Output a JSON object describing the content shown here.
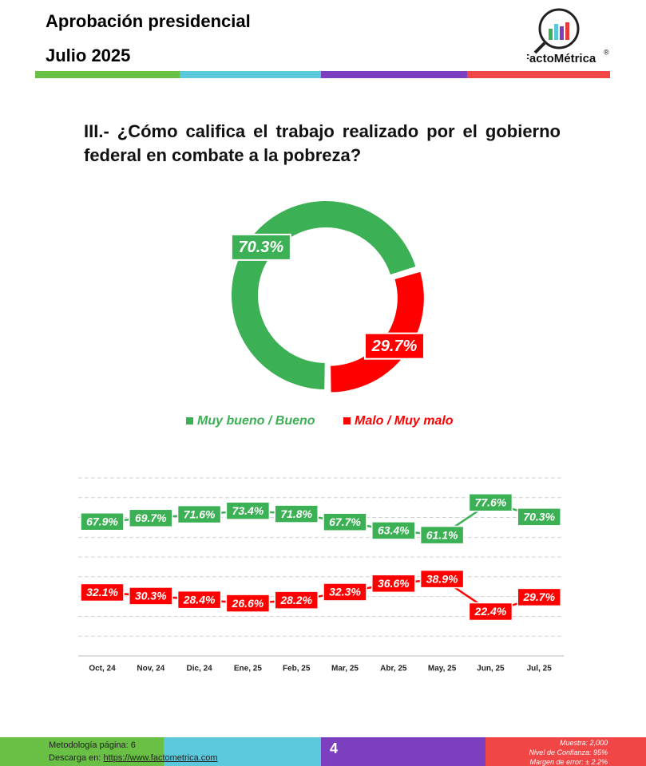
{
  "header": {
    "title": "Aprobación presidencial",
    "subtitle": "Julio 2025",
    "brand": "FactoMétrica",
    "brand_mark": "®"
  },
  "chart_data": [
    {
      "type": "pie",
      "title": "III.- ¿Cómo califica el trabajo realizado por el gobierno federal en combate a la pobreza?",
      "categories": [
        "Muy bueno / Bueno",
        "Malo / Muy malo"
      ],
      "values": [
        70.3,
        29.7
      ],
      "value_labels": [
        "70.3%",
        "29.7%"
      ],
      "colors": [
        "#3cb054",
        "#ff0000"
      ],
      "donut": true
    },
    {
      "type": "line",
      "categories": [
        "Oct, 24",
        "Nov, 24",
        "Dic, 24",
        "Ene, 25",
        "Feb, 25",
        "Mar, 25",
        "Abr, 25",
        "May, 25",
        "Jun, 25",
        "Jul, 25"
      ],
      "series": [
        {
          "color": "#3cb054",
          "values": [
            67.9,
            69.7,
            71.6,
            73.4,
            71.8,
            67.7,
            63.4,
            61.1,
            77.6,
            70.3
          ],
          "value_labels": [
            "67.9%",
            "69.7%",
            "71.6%",
            "73.4%",
            "71.8%",
            "67.7%",
            "63.4%",
            "61.1%",
            "77.6%",
            "70.3%"
          ]
        },
        {
          "color": "#ff0000",
          "values": [
            32.1,
            30.3,
            28.4,
            26.6,
            28.2,
            32.3,
            36.6,
            38.9,
            22.4,
            29.7
          ],
          "value_labels": [
            "32.1%",
            "30.3%",
            "28.4%",
            "26.6%",
            "28.2%",
            "32.3%",
            "36.6%",
            "38.9%",
            "22.4%",
            "29.7%"
          ]
        }
      ],
      "ylim": [
        0,
        90
      ],
      "yticks": [
        0,
        10,
        20,
        30,
        40,
        50,
        60,
        70,
        80,
        90
      ],
      "grid": true
    }
  ],
  "footer": {
    "methodology": "Metodología página: 6",
    "download": "Descarga en: ",
    "url": "https://www.factometrica.com",
    "page": "4",
    "sample": "Muestra:  2,000",
    "confidence": "Nivel de Confianza: 95%",
    "error": "Margen de error: ± 2.2%"
  }
}
